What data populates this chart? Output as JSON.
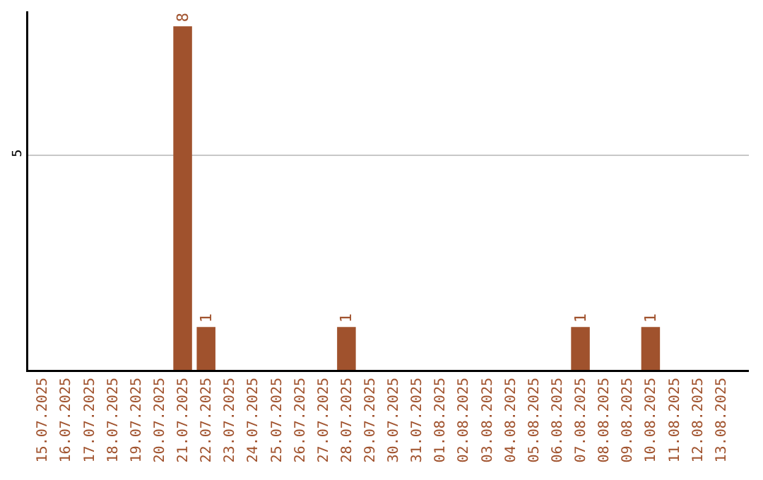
{
  "chart_data": {
    "type": "bar",
    "categories": [
      "15.07.2025",
      "16.07.2025",
      "17.07.2025",
      "18.07.2025",
      "19.07.2025",
      "20.07.2025",
      "21.07.2025",
      "22.07.2025",
      "23.07.2025",
      "24.07.2025",
      "25.07.2025",
      "26.07.2025",
      "27.07.2025",
      "28.07.2025",
      "29.07.2025",
      "30.07.2025",
      "31.07.2025",
      "01.08.2025",
      "02.08.2025",
      "03.08.2025",
      "04.08.2025",
      "05.08.2025",
      "06.08.2025",
      "07.08.2025",
      "08.08.2025",
      "09.08.2025",
      "10.08.2025",
      "11.08.2025",
      "12.08.2025",
      "13.08.2025"
    ],
    "values": [
      0,
      0,
      0,
      0,
      0,
      0,
      8,
      1,
      0,
      0,
      0,
      0,
      0,
      1,
      0,
      0,
      0,
      0,
      0,
      0,
      0,
      0,
      0,
      1,
      0,
      0,
      1,
      0,
      0,
      0
    ],
    "color": "#a0522d",
    "value_labels": [
      null,
      null,
      null,
      null,
      null,
      null,
      "8",
      "1",
      null,
      null,
      null,
      null,
      null,
      "1",
      null,
      null,
      null,
      null,
      null,
      null,
      null,
      null,
      null,
      "1",
      null,
      null,
      "1",
      null,
      null,
      null
    ],
    "ylim": [
      0,
      8.35
    ],
    "yticks": [
      5
    ],
    "grid": "y"
  }
}
